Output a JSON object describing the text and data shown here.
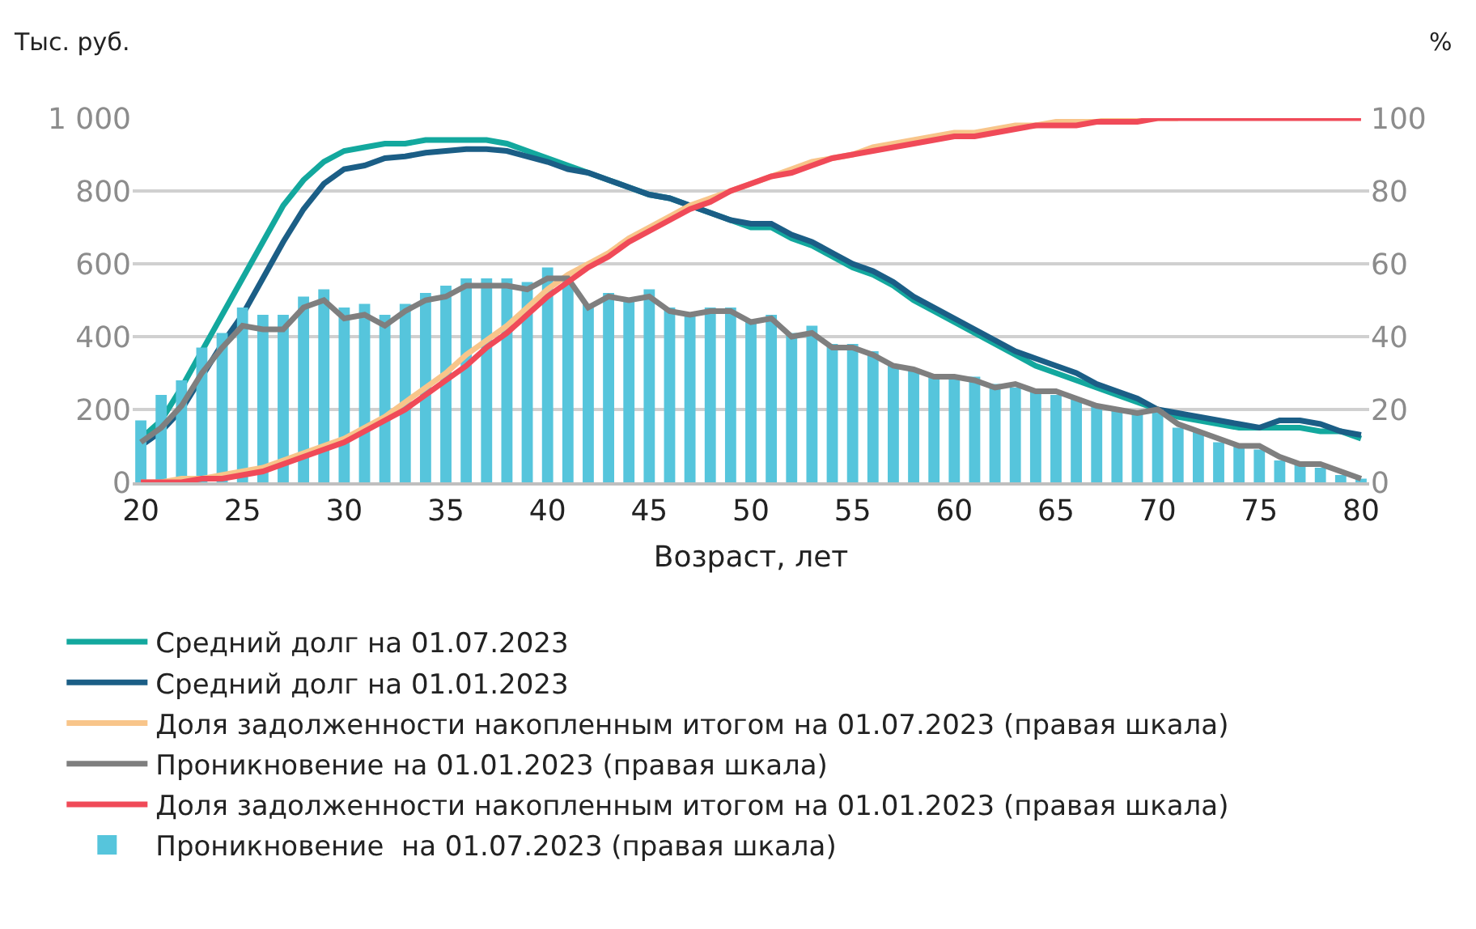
{
  "chart_data": {
    "type": "line",
    "xlabel": "Возраст, лет",
    "ylabel": "Тыс. руб.",
    "y2label": "%",
    "x": [
      20,
      21,
      22,
      23,
      24,
      25,
      26,
      27,
      28,
      29,
      30,
      31,
      32,
      33,
      34,
      35,
      36,
      37,
      38,
      39,
      40,
      41,
      42,
      43,
      44,
      45,
      46,
      47,
      48,
      49,
      50,
      51,
      52,
      53,
      54,
      55,
      56,
      57,
      58,
      59,
      60,
      61,
      62,
      63,
      64,
      65,
      66,
      67,
      68,
      69,
      70,
      71,
      72,
      73,
      74,
      75,
      76,
      77,
      78,
      79,
      80
    ],
    "xlim": [
      19.6,
      80.4
    ],
    "xticks": [
      20,
      25,
      30,
      35,
      40,
      45,
      50,
      55,
      60,
      65,
      70,
      75,
      80
    ],
    "ylim": [
      0,
      1000
    ],
    "yticks": [
      0,
      200,
      400,
      600,
      800,
      {
        "value": 1000,
        "label": "1 000"
      }
    ],
    "y2lim": [
      0,
      100
    ],
    "y2ticks": [
      0,
      20,
      40,
      60,
      80,
      100
    ],
    "grid": "y",
    "legend": "bottom",
    "series": [
      {
        "name": "Проникновение  на 01.07.2023 (правая шкала)",
        "type": "bar",
        "axis": "y2",
        "color": "#56c5dc",
        "values": [
          17,
          24,
          28,
          37,
          41,
          48,
          46,
          46,
          51,
          53,
          48,
          49,
          46,
          49,
          52,
          54,
          56,
          56,
          56,
          55,
          59,
          56,
          49,
          52,
          50,
          53,
          48,
          46,
          48,
          48,
          44,
          46,
          41,
          43,
          38,
          38,
          36,
          32,
          31,
          29,
          29,
          29,
          27,
          26,
          25,
          24,
          23,
          21,
          20,
          19,
          20,
          15,
          14,
          11,
          10,
          9,
          6,
          5,
          4,
          2,
          1
        ]
      },
      {
        "name": "Средний долг на 01.07.2023",
        "axis": "y",
        "color": "#13a89e",
        "values": [
          120,
          170,
          260,
          360,
          460,
          560,
          660,
          760,
          830,
          880,
          910,
          920,
          930,
          930,
          940,
          940,
          940,
          940,
          930,
          910,
          890,
          870,
          850,
          830,
          810,
          790,
          780,
          760,
          740,
          720,
          700,
          700,
          670,
          650,
          620,
          590,
          570,
          540,
          500,
          470,
          440,
          410,
          380,
          350,
          320,
          300,
          280,
          260,
          240,
          220,
          200,
          180,
          170,
          160,
          150,
          150,
          150,
          150,
          140,
          140,
          120
        ]
      },
      {
        "name": "Средний долг на 01.01.2023",
        "axis": "y",
        "color": "#1b5e86",
        "values": [
          100,
          140,
          200,
          290,
          380,
          460,
          560,
          660,
          750,
          820,
          860,
          870,
          890,
          895,
          905,
          910,
          915,
          915,
          910,
          895,
          880,
          860,
          850,
          830,
          810,
          790,
          780,
          760,
          740,
          720,
          710,
          710,
          680,
          660,
          630,
          600,
          580,
          550,
          510,
          480,
          450,
          420,
          390,
          360,
          340,
          320,
          300,
          270,
          250,
          230,
          200,
          190,
          180,
          170,
          160,
          150,
          170,
          170,
          160,
          140,
          130
        ]
      },
      {
        "name": "Доля задолженности накопленным итогом на 01.07.2023 (правая шкала)",
        "axis": "y2",
        "color": "#f8c58a",
        "values": [
          0,
          0,
          1,
          1,
          2,
          3,
          4,
          6,
          8,
          10,
          12,
          15,
          18,
          22,
          26,
          30,
          35,
          39,
          43,
          48,
          53,
          57,
          60,
          63,
          67,
          70,
          73,
          76,
          78,
          80,
          82,
          84,
          86,
          88,
          89,
          90,
          92,
          93,
          94,
          95,
          96,
          96,
          97,
          98,
          98,
          99,
          99,
          99,
          100,
          100,
          100,
          100,
          null,
          null,
          null,
          null,
          null,
          null,
          null,
          null,
          null
        ]
      },
      {
        "name": "Проникновение на 01.01.2023 (правая шкала)",
        "axis": "y2",
        "color": "#7f7f7f",
        "values": [
          11,
          15,
          21,
          30,
          37,
          43,
          42,
          42,
          48,
          50,
          45,
          46,
          43,
          47,
          50,
          51,
          54,
          54,
          54,
          53,
          56,
          56,
          48,
          51,
          50,
          51,
          47,
          46,
          47,
          47,
          44,
          45,
          40,
          41,
          37,
          37,
          35,
          32,
          31,
          29,
          29,
          28,
          26,
          27,
          25,
          25,
          23,
          21,
          20,
          19,
          20,
          16,
          14,
          12,
          10,
          10,
          7,
          5,
          5,
          3,
          1
        ]
      },
      {
        "name": "Доля задолженности накопленным итогом на 01.01.2023 (правая шкала)",
        "axis": "y2",
        "color": "#f04a58",
        "values": [
          0,
          0,
          0,
          1,
          1,
          2,
          3,
          5,
          7,
          9,
          11,
          14,
          17,
          20,
          24,
          28,
          32,
          37,
          41,
          46,
          51,
          55,
          59,
          62,
          66,
          69,
          72,
          75,
          77,
          80,
          82,
          84,
          85,
          87,
          89,
          90,
          91,
          92,
          93,
          94,
          95,
          95,
          96,
          97,
          98,
          98,
          98,
          99,
          99,
          99,
          100,
          100,
          100,
          100,
          100,
          100,
          100,
          100,
          100,
          100,
          100
        ]
      }
    ]
  }
}
